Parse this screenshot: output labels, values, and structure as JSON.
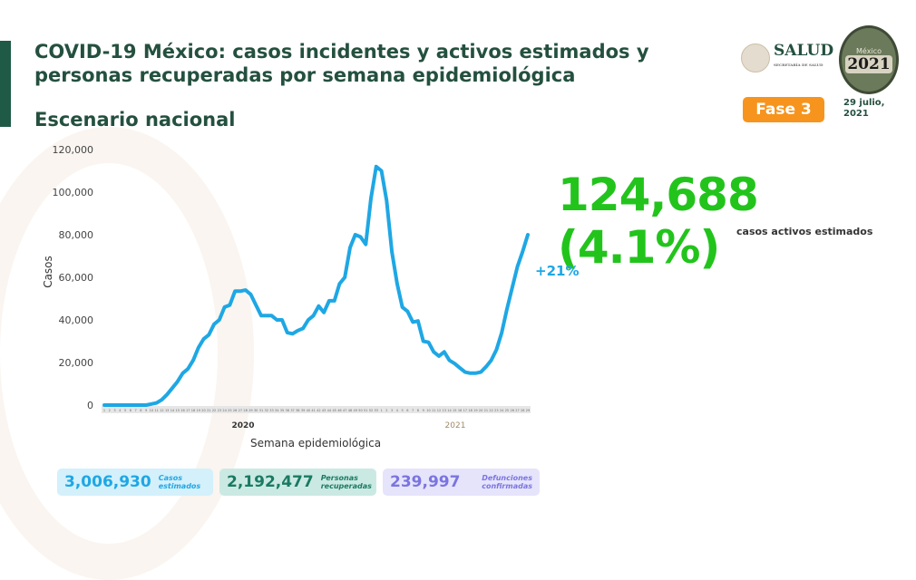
{
  "header": {
    "title": "COVID-19 México: casos incidentes y activos estimados y personas recuperadas por semana epidemiológica",
    "subtitle": "Escenario nacional",
    "salud": "SALUD",
    "salud_sub": "SECRETARÍA DE SALUD",
    "logo_year": "2021",
    "logo_text": "México",
    "phase": "Fase 3",
    "date": "29 julio, 2021"
  },
  "highlight": {
    "value": "124,688 (4.1%)",
    "label": "casos activos estimados",
    "change": "+21%"
  },
  "colors": {
    "line": "#1ea7e4",
    "title": "#24503f",
    "accent": "#22c41c",
    "phase": "#f7941d"
  },
  "cards": [
    {
      "value": "3,006,930",
      "label": "Casos estimados"
    },
    {
      "value": "2,192,477",
      "label": "Personas recuperadas"
    },
    {
      "value": "239,997",
      "label": "Defunciones confirmadas"
    }
  ],
  "chart_data": {
    "type": "line",
    "xlabel": "Semana epidemiológica",
    "ylabel": "Casos",
    "ylim": [
      0,
      120000
    ],
    "yticks": [
      0,
      20000,
      40000,
      60000,
      80000,
      100000,
      120000
    ],
    "ytick_labels": [
      "0",
      "20,000",
      "40,000",
      "60,000",
      "80,000",
      "100,000",
      "120,000"
    ],
    "year_labels": [
      "2020",
      "2021"
    ],
    "x_2020": [
      1,
      2,
      3,
      4,
      5,
      6,
      7,
      8,
      9,
      10,
      11,
      12,
      13,
      14,
      15,
      16,
      17,
      18,
      19,
      20,
      21,
      22,
      23,
      24,
      25,
      26,
      27,
      28,
      29,
      30,
      31,
      32,
      33,
      34,
      35,
      36,
      37,
      38,
      39,
      40,
      41,
      42,
      43,
      44,
      45,
      46,
      47,
      48,
      49,
      50,
      51,
      52,
      53
    ],
    "x_2021": [
      1,
      2,
      3,
      4,
      5,
      6,
      7,
      8,
      9,
      10,
      11,
      12,
      13,
      14,
      15,
      16,
      17,
      18,
      19,
      20,
      21,
      22,
      23,
      24,
      25,
      26,
      27,
      28,
      29
    ],
    "values_2020": [
      0,
      0,
      0,
      0,
      0,
      0,
      0,
      0,
      0,
      500,
      1000,
      2500,
      5000,
      8000,
      11000,
      15000,
      17000,
      21000,
      27000,
      31000,
      33000,
      38000,
      40000,
      46000,
      47000,
      53500,
      53500,
      54000,
      52000,
      47000,
      42000,
      42000,
      42000,
      40000,
      40000,
      34000,
      33500,
      35000,
      36000,
      40000,
      42000,
      46500,
      43500,
      49000,
      49000,
      57000,
      60000,
      74000,
      80000,
      79000,
      75500,
      97000,
      112000
    ],
    "values_2021": [
      110000,
      96000,
      72000,
      57000,
      46000,
      44000,
      39000,
      39500,
      30000,
      29500,
      25000,
      23000,
      25000,
      21000,
      19500,
      17500,
      15500,
      15000,
      15000,
      15500,
      18000,
      21000,
      26000,
      34000,
      45000,
      55000,
      65000,
      72000,
      80000
    ]
  }
}
